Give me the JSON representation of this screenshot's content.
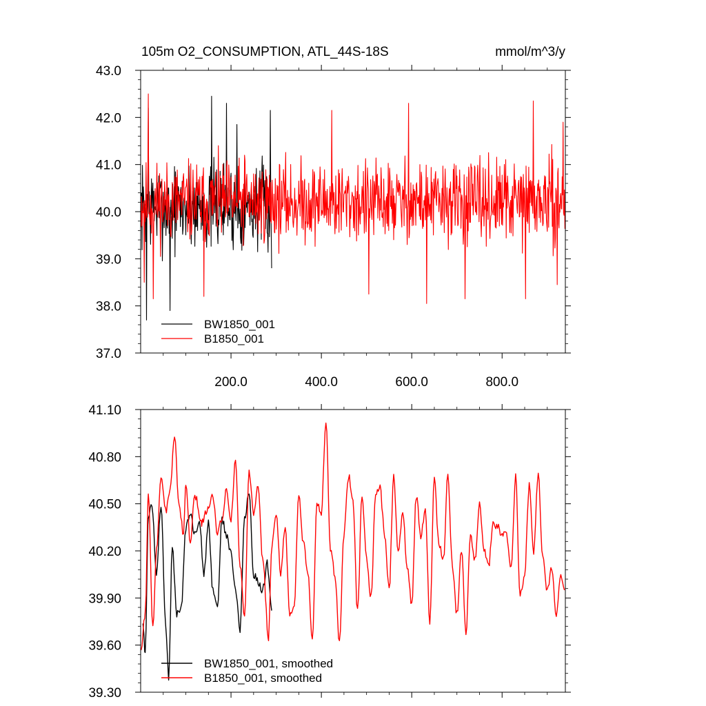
{
  "chart_data": [
    {
      "type": "line",
      "title": "105m O2_CONSUMPTION, ATL_44S-18S",
      "units": "mmol/m^3/y",
      "xlim": [
        0,
        940
      ],
      "ylim": [
        37.0,
        43.0
      ],
      "xticks": [
        200,
        400,
        600,
        800
      ],
      "xtick_labels": [
        "200.0",
        "400.0",
        "600.0",
        "800.0"
      ],
      "yticks": [
        37.0,
        38.0,
        39.0,
        40.0,
        41.0,
        42.0,
        43.0
      ],
      "ytick_labels": [
        "37.0",
        "38.0",
        "39.0",
        "40.0",
        "41.0",
        "42.0",
        "43.0"
      ],
      "legend_position": "bottom-left",
      "series": [
        {
          "name": "BW1850_001",
          "color": "#000000",
          "x_range": [
            1,
            290
          ],
          "mean": 40.1,
          "std": 0.8,
          "extremes": [
            [
              13,
              37.7
            ],
            [
              17,
              42.2
            ],
            [
              65,
              37.9
            ],
            [
              157,
              42.45
            ],
            [
              190,
              42.3
            ],
            [
              213,
              41.85
            ],
            [
              287,
              42.15
            ],
            [
              290,
              38.8
            ]
          ],
          "seed": 7
        },
        {
          "name": "B1850_001",
          "color": "#ff0000",
          "x_range": [
            1,
            940
          ],
          "mean": 40.2,
          "std": 0.75,
          "extremes": [
            [
              8,
              38.5
            ],
            [
              17,
              42.5
            ],
            [
              28,
              38.15
            ],
            [
              140,
              38.2
            ],
            [
              230,
              41.2
            ],
            [
              423,
              42.15
            ],
            [
              505,
              38.25
            ],
            [
              593,
              42.3
            ],
            [
              633,
              38.05
            ],
            [
              718,
              38.15
            ],
            [
              852,
              38.15
            ],
            [
              869,
              42.35
            ],
            [
              922,
              38.45
            ],
            [
              935,
              41.9
            ]
          ],
          "seed": 11
        }
      ]
    },
    {
      "type": "line",
      "title": "",
      "xlim": [
        0,
        940
      ],
      "ylim": [
        39.3,
        41.1
      ],
      "xticks": [
        200,
        400,
        600,
        800
      ],
      "yticks": [
        39.3,
        39.6,
        39.9,
        40.2,
        40.5,
        40.8,
        41.1
      ],
      "ytick_labels": [
        "39.30",
        "39.60",
        "39.90",
        "40.20",
        "40.50",
        "40.80",
        "41.10"
      ],
      "legend_position": "bottom-left",
      "series": [
        {
          "name": "BW1850_001, smoothed",
          "color": "#000000",
          "x": [
            5,
            10,
            17,
            25,
            35,
            45,
            55,
            62,
            70,
            80,
            90,
            100,
            110,
            120,
            130,
            140,
            150,
            160,
            170,
            180,
            190,
            200,
            210,
            220,
            230,
            240,
            250,
            260,
            270,
            280,
            290
          ],
          "y": [
            39.75,
            39.55,
            40.4,
            40.5,
            40.05,
            40.5,
            39.75,
            39.38,
            40.22,
            39.8,
            39.85,
            40.35,
            40.45,
            40.3,
            40.4,
            40.05,
            40.38,
            39.95,
            39.85,
            40.4,
            40.3,
            40.18,
            39.95,
            39.7,
            40.4,
            40.58,
            40.05,
            40.0,
            39.95,
            40.12,
            39.82
          ]
        },
        {
          "name": "B1850_001, smoothed",
          "color": "#ff0000",
          "x": [
            1,
            10,
            17,
            27,
            35,
            45,
            55,
            65,
            75,
            85,
            95,
            100,
            110,
            120,
            135,
            150,
            160,
            170,
            180,
            190,
            200,
            210,
            220,
            230,
            240,
            250,
            260,
            270,
            283,
            290,
            300,
            310,
            320,
            330,
            340,
            350,
            360,
            370,
            380,
            390,
            400,
            410,
            420,
            430,
            440,
            450,
            460,
            470,
            480,
            490,
            500,
            510,
            520,
            530,
            540,
            550,
            560,
            570,
            580,
            590,
            600,
            610,
            620,
            630,
            640,
            650,
            660,
            670,
            680,
            690,
            700,
            710,
            720,
            730,
            740,
            750,
            760,
            770,
            780,
            790,
            800,
            810,
            820,
            830,
            840,
            850,
            860,
            870,
            880,
            890,
            900,
            910,
            920,
            930,
            938
          ],
          "y": [
            39.58,
            39.8,
            40.55,
            39.72,
            40.2,
            40.68,
            40.45,
            40.58,
            40.93,
            40.5,
            40.3,
            40.62,
            40.25,
            40.55,
            40.38,
            40.48,
            40.55,
            40.32,
            40.4,
            40.6,
            40.4,
            40.78,
            40.1,
            39.8,
            40.7,
            40.45,
            40.6,
            40.15,
            39.65,
            40.22,
            40.45,
            40.05,
            40.35,
            39.8,
            39.85,
            40.55,
            40.25,
            40.05,
            39.62,
            40.5,
            40.45,
            41.03,
            40.2,
            40.05,
            39.62,
            40.3,
            40.68,
            40.5,
            39.82,
            40.55,
            40.15,
            39.9,
            40.55,
            40.6,
            40.3,
            39.95,
            40.68,
            40.2,
            40.45,
            40.1,
            39.85,
            40.55,
            40.3,
            40.45,
            39.75,
            40.65,
            40.25,
            40.15,
            40.7,
            40.1,
            39.8,
            40.2,
            39.68,
            40.3,
            40.15,
            40.5,
            40.2,
            40.1,
            40.38,
            40.35,
            40.3,
            40.3,
            40.1,
            40.68,
            39.92,
            40.05,
            40.62,
            40.2,
            40.7,
            40.15,
            39.95,
            40.1,
            39.8,
            40.05,
            39.95
          ]
        }
      ]
    }
  ]
}
